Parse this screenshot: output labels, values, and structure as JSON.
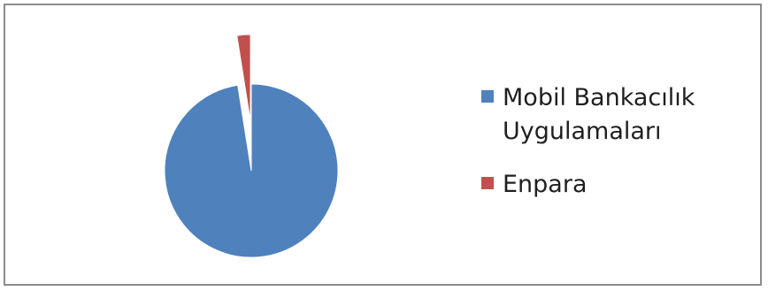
{
  "chart_data": {
    "type": "pie",
    "title": "",
    "categories": [
      "Mobil Bankacılık\nUygulamaları",
      "Enpara"
    ],
    "values": [
      97.5,
      2.5
    ],
    "colors": [
      "#4f81bd",
      "#c0504d"
    ],
    "exploded": [
      false,
      true
    ],
    "legend_position": "right"
  }
}
